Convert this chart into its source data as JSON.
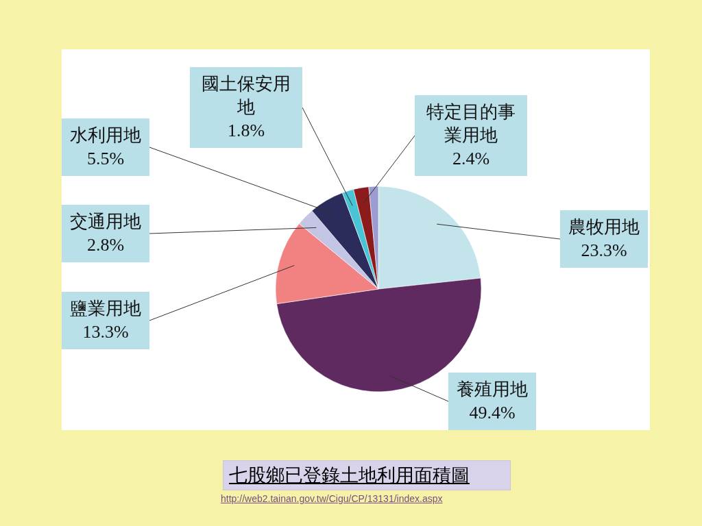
{
  "chart_data": {
    "type": "pie",
    "title": "七股鄉已登錄土地利用面積圖",
    "categories": [
      "農牧用地",
      "養殖用地",
      "鹽業用地",
      "交通用地",
      "水利用地",
      "國土保安用地",
      "特定目的事業用地",
      null
    ],
    "values": [
      23.3,
      49.4,
      13.3,
      2.8,
      5.5,
      1.8,
      2.4,
      1.5
    ],
    "colors": [
      "#c4e4ec",
      "#5e2a60",
      "#f28282",
      "#c4c4e4",
      "#2c2c5c",
      "#48c4d4",
      "#8c1c1c",
      "#9c9cd0"
    ],
    "value_labels": [
      "23.3%",
      "49.4%",
      "13.3%",
      "2.8%",
      "5.5%",
      "1.8%",
      "2.4%",
      null
    ],
    "annotations": [
      "http://web2.tainan.gov.tw/Cigu/CP/13131/index.aspx"
    ]
  }
}
